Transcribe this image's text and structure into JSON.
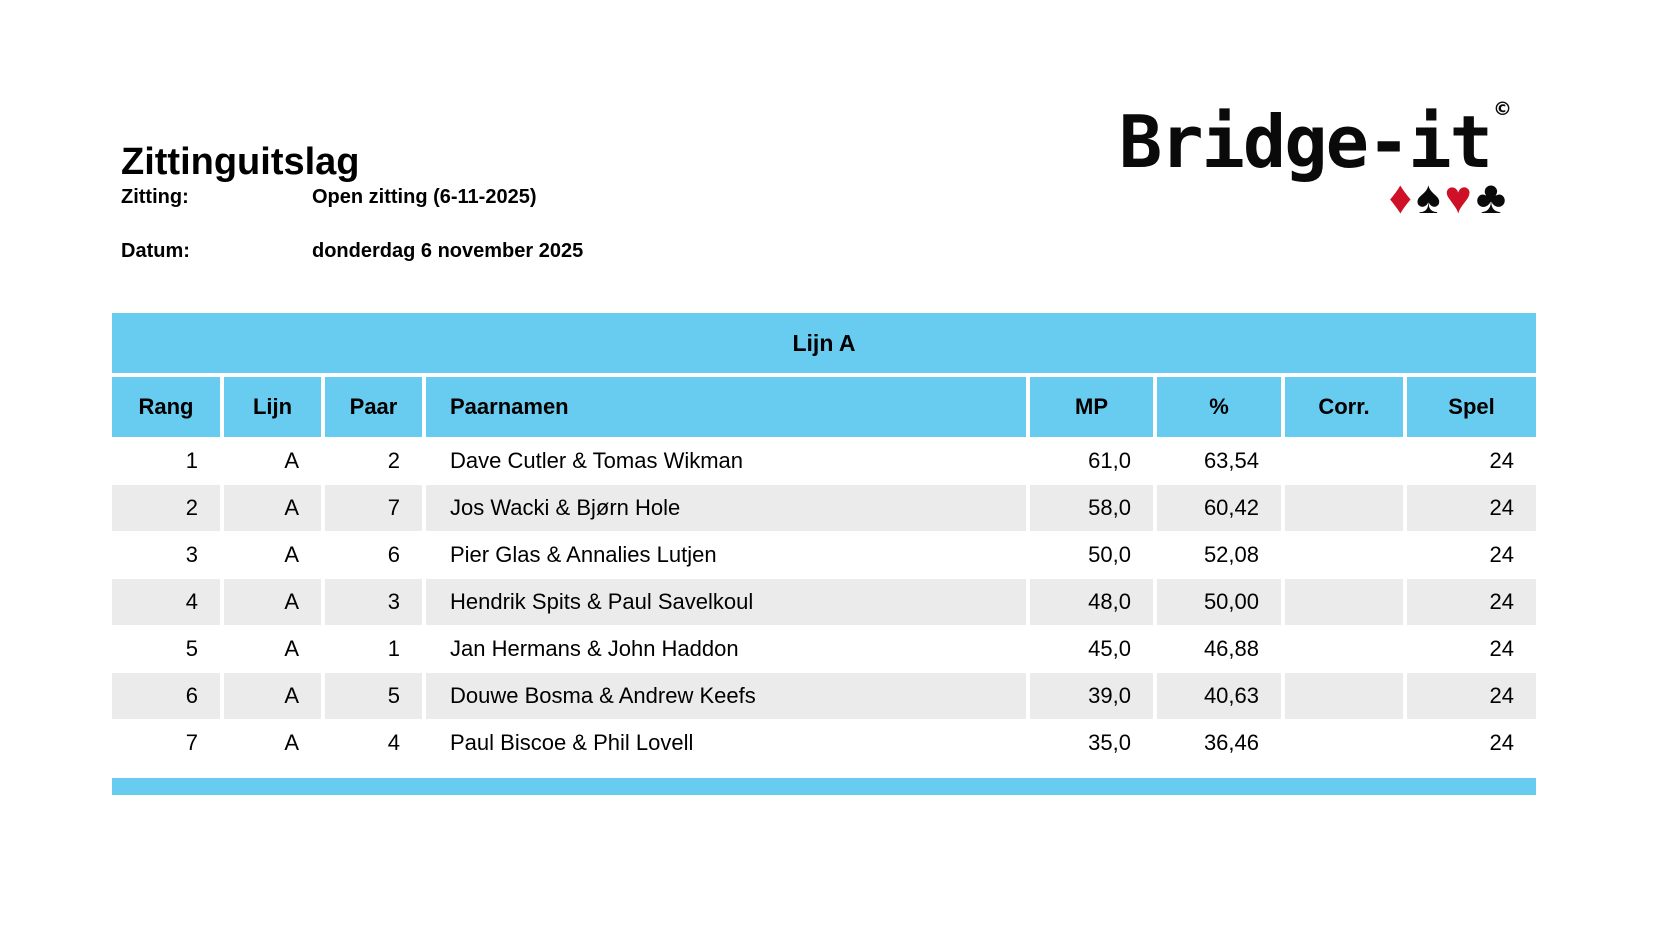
{
  "page": {
    "title": "Zittinguitslag",
    "meta": {
      "session_label": "Zitting:",
      "session_value": "Open zitting (6-11-2025)",
      "date_label": "Datum:",
      "date_value": "donderdag 6 november 2025"
    }
  },
  "logo": {
    "text": "Bridge-it",
    "mark": "©",
    "suits": [
      {
        "name": "diamond",
        "glyph": "♦",
        "color": "#CE1126"
      },
      {
        "name": "spade",
        "glyph": "♠",
        "color": "#0A0A0A"
      },
      {
        "name": "heart",
        "glyph": "♥",
        "color": "#CE1126"
      },
      {
        "name": "club",
        "glyph": "♣",
        "color": "#0A0A0A"
      }
    ]
  },
  "table": {
    "section_title": "Lijn A",
    "columns": [
      "Rang",
      "Lijn",
      "Paar",
      "Paarnamen",
      "MP",
      "%",
      "Corr.",
      "Spel"
    ],
    "rows": [
      {
        "rang": "1",
        "lijn": "A",
        "paar": "2",
        "paarnamen": "Dave Cutler & Tomas Wikman",
        "mp": "61,0",
        "pct": "63,54",
        "corr": "",
        "spel": "24"
      },
      {
        "rang": "2",
        "lijn": "A",
        "paar": "7",
        "paarnamen": "Jos Wacki & Bjørn Hole",
        "mp": "58,0",
        "pct": "60,42",
        "corr": "",
        "spel": "24"
      },
      {
        "rang": "3",
        "lijn": "A",
        "paar": "6",
        "paarnamen": "Pier Glas & Annalies Lutjen",
        "mp": "50,0",
        "pct": "52,08",
        "corr": "",
        "spel": "24"
      },
      {
        "rang": "4",
        "lijn": "A",
        "paar": "3",
        "paarnamen": "Hendrik Spits & Paul Savelkoul",
        "mp": "48,0",
        "pct": "50,00",
        "corr": "",
        "spel": "24"
      },
      {
        "rang": "5",
        "lijn": "A",
        "paar": "1",
        "paarnamen": "Jan Hermans & John Haddon",
        "mp": "45,0",
        "pct": "46,88",
        "corr": "",
        "spel": "24"
      },
      {
        "rang": "6",
        "lijn": "A",
        "paar": "5",
        "paarnamen": "Douwe Bosma & Andrew Keefs",
        "mp": "39,0",
        "pct": "40,63",
        "corr": "",
        "spel": "24"
      },
      {
        "rang": "7",
        "lijn": "A",
        "paar": "4",
        "paarnamen": "Paul Biscoe & Phil Lovell",
        "mp": "35,0",
        "pct": "36,46",
        "corr": "",
        "spel": "24"
      }
    ]
  },
  "colors": {
    "accent_blue": "#68CBF0",
    "row_alt_gray": "#EBEBEB",
    "suit_red": "#CE1126"
  }
}
